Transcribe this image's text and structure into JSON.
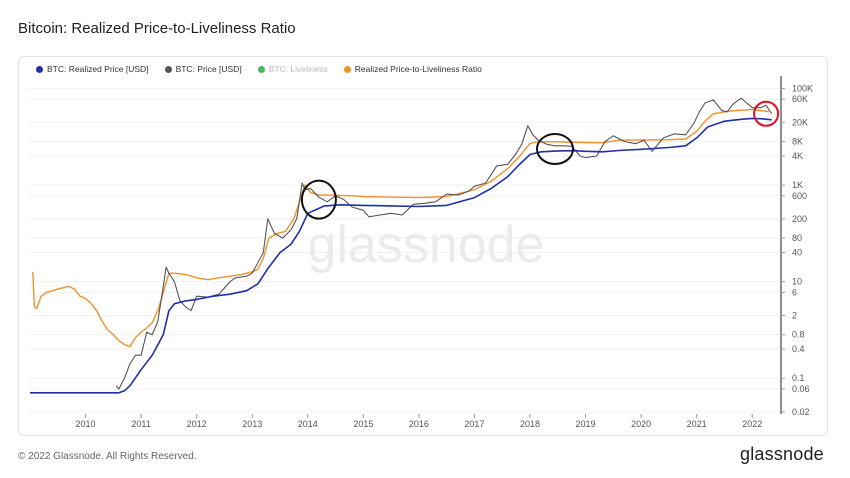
{
  "title": "Bitcoin: Realized Price-to-Liveliness Ratio",
  "footer": "© 2022 Glassnode. All Rights Reserved.",
  "logo": "glassnode",
  "watermark": "glassnode",
  "colors": {
    "realized_price": "#1f2fa8",
    "price": "#555555",
    "liveliness": "#2db34a",
    "ratio": "#f0922a",
    "annotation_black": "#111111",
    "annotation_red": "#e0101e"
  },
  "chart_data": {
    "type": "line",
    "title": "Bitcoin: Realized Price-to-Liveliness Ratio",
    "yscale": "log",
    "ylim": [
      0.02,
      150000
    ],
    "xlim": [
      2009.0,
      2022.5
    ],
    "grid": "horizontal",
    "legend_position": "top-left",
    "x_ticks": [
      "2010",
      "2011",
      "2012",
      "2013",
      "2014",
      "2015",
      "2016",
      "2017",
      "2018",
      "2019",
      "2020",
      "2021",
      "2022"
    ],
    "y_ticks": [
      "100K",
      "60K",
      "20K",
      "8K",
      "4K",
      "1K",
      "600",
      "200",
      "80",
      "40",
      "10",
      "6",
      "2",
      "0.8",
      "0.4",
      "0.1",
      "0.06",
      "0.02"
    ],
    "y_tick_values": [
      100000,
      60000,
      20000,
      8000,
      4000,
      1000,
      600,
      200,
      80,
      40,
      10,
      6,
      2,
      0.8,
      0.4,
      0.1,
      0.06,
      0.02
    ],
    "series": [
      {
        "name": "BTC: Realized Price [USD]",
        "color": "#1f2fa8",
        "visible": true,
        "x": [
          2009.0,
          2010.0,
          2010.5,
          2010.6,
          2010.7,
          2010.8,
          2011.0,
          2011.2,
          2011.4,
          2011.5,
          2011.6,
          2011.8,
          2012.0,
          2012.3,
          2012.6,
          2012.9,
          2013.1,
          2013.3,
          2013.5,
          2013.7,
          2013.85,
          2014.0,
          2014.3,
          2014.6,
          2015.0,
          2015.5,
          2016.0,
          2016.5,
          2017.0,
          2017.3,
          2017.6,
          2017.8,
          2018.0,
          2018.2,
          2018.5,
          2018.8,
          2019.0,
          2019.3,
          2019.6,
          2020.0,
          2020.5,
          2020.8,
          2021.0,
          2021.2,
          2021.5,
          2021.8,
          2022.0,
          2022.2,
          2022.35
        ],
        "y": [
          0.05,
          0.05,
          0.05,
          0.05,
          0.055,
          0.07,
          0.15,
          0.3,
          0.8,
          2.5,
          3.5,
          4.0,
          4.3,
          5.0,
          5.5,
          6.5,
          9,
          20,
          40,
          60,
          110,
          260,
          370,
          390,
          380,
          370,
          360,
          380,
          550,
          850,
          1500,
          2600,
          4300,
          4900,
          5100,
          5150,
          5000,
          4900,
          5200,
          5500,
          6000,
          6500,
          9500,
          16000,
          21000,
          23000,
          24000,
          23500,
          22500
        ]
      },
      {
        "name": "BTC: Price [USD]",
        "color": "#555555",
        "visible": true,
        "x": [
          2010.55,
          2010.6,
          2010.7,
          2010.8,
          2010.9,
          2011.0,
          2011.1,
          2011.2,
          2011.3,
          2011.4,
          2011.45,
          2011.5,
          2011.6,
          2011.7,
          2011.8,
          2011.9,
          2012.0,
          2012.2,
          2012.4,
          2012.6,
          2012.7,
          2012.9,
          2013.0,
          2013.2,
          2013.28,
          2013.4,
          2013.55,
          2013.7,
          2013.8,
          2013.9,
          2013.95,
          2014.05,
          2014.2,
          2014.35,
          2014.5,
          2014.65,
          2014.8,
          2015.0,
          2015.1,
          2015.3,
          2015.5,
          2015.7,
          2015.9,
          2016.1,
          2016.3,
          2016.5,
          2016.7,
          2016.9,
          2017.0,
          2017.2,
          2017.4,
          2017.6,
          2017.75,
          2017.85,
          2017.96,
          2018.05,
          2018.15,
          2018.3,
          2018.45,
          2018.6,
          2018.75,
          2018.9,
          2019.0,
          2019.2,
          2019.35,
          2019.5,
          2019.7,
          2019.9,
          2020.05,
          2020.2,
          2020.4,
          2020.6,
          2020.8,
          2020.95,
          2021.05,
          2021.15,
          2021.3,
          2021.45,
          2021.55,
          2021.65,
          2021.8,
          2021.9,
          2022.0,
          2022.15,
          2022.25,
          2022.35
        ],
        "y": [
          0.07,
          0.06,
          0.1,
          0.2,
          0.3,
          0.3,
          0.9,
          0.8,
          1.5,
          8,
          20,
          15,
          10,
          4,
          3,
          2.5,
          5,
          4.8,
          5.5,
          10,
          12,
          13,
          15,
          40,
          200,
          100,
          80,
          120,
          200,
          1100,
          800,
          850,
          560,
          450,
          600,
          500,
          350,
          300,
          220,
          240,
          260,
          240,
          400,
          420,
          450,
          650,
          620,
          750,
          950,
          1100,
          2500,
          2700,
          4500,
          7000,
          17000,
          11000,
          8500,
          7000,
          6500,
          6500,
          6400,
          4000,
          3700,
          4000,
          8000,
          10500,
          8000,
          7200,
          8500,
          5000,
          9500,
          11500,
          11000,
          19000,
          33000,
          50000,
          58000,
          35000,
          33000,
          47000,
          63000,
          50000,
          40000,
          40000,
          45000,
          30000
        ]
      },
      {
        "name": "BTC: Liveliness",
        "color": "#2db34a",
        "visible": false,
        "x": [],
        "y": []
      },
      {
        "name": "Realized Price-to-Liveliness Ratio",
        "color": "#f0922a",
        "visible": true,
        "x": [
          2009.05,
          2009.08,
          2009.12,
          2009.2,
          2009.3,
          2009.5,
          2009.7,
          2009.8,
          2009.9,
          2010.0,
          2010.1,
          2010.2,
          2010.3,
          2010.4,
          2010.5,
          2010.6,
          2010.7,
          2010.8,
          2010.9,
          2011.0,
          2011.1,
          2011.2,
          2011.3,
          2011.4,
          2011.5,
          2011.6,
          2011.8,
          2012.0,
          2012.2,
          2012.4,
          2012.6,
          2012.8,
          2013.0,
          2013.1,
          2013.2,
          2013.3,
          2013.45,
          2013.6,
          2013.75,
          2013.85,
          2013.95,
          2014.05,
          2014.2,
          2014.4,
          2014.6,
          2014.8,
          2015.0,
          2015.5,
          2016.0,
          2016.5,
          2017.0,
          2017.3,
          2017.6,
          2017.8,
          2018.0,
          2018.1,
          2018.3,
          2018.6,
          2019.0,
          2019.3,
          2019.6,
          2020.0,
          2020.5,
          2020.8,
          2021.0,
          2021.15,
          2021.3,
          2021.5,
          2021.7,
          2021.9,
          2022.0,
          2022.15,
          2022.3
        ],
        "y": [
          16,
          3,
          2.8,
          5,
          6,
          7,
          8,
          7,
          5,
          4.5,
          3.5,
          2.5,
          1.5,
          1.0,
          0.8,
          0.6,
          0.5,
          0.45,
          0.7,
          0.9,
          1.1,
          1.4,
          2.5,
          6,
          15,
          15,
          14,
          12,
          11,
          12,
          13,
          14,
          16,
          18,
          30,
          80,
          100,
          110,
          200,
          450,
          1000,
          700,
          620,
          620,
          610,
          600,
          580,
          560,
          550,
          580,
          800,
          1200,
          2200,
          3800,
          7300,
          7700,
          7900,
          7800,
          7600,
          7500,
          8500,
          8600,
          8700,
          9000,
          13000,
          21000,
          30000,
          33000,
          35000,
          36000,
          37000,
          35000,
          33000
        ]
      }
    ],
    "annotations": [
      {
        "shape": "ellipse",
        "color": "black",
        "x": 2014.2,
        "y": 500
      },
      {
        "shape": "ellipse",
        "color": "black",
        "x": 2018.45,
        "y": 5600
      },
      {
        "shape": "circle",
        "color": "red",
        "x": 2022.25,
        "y": 30000
      }
    ]
  }
}
